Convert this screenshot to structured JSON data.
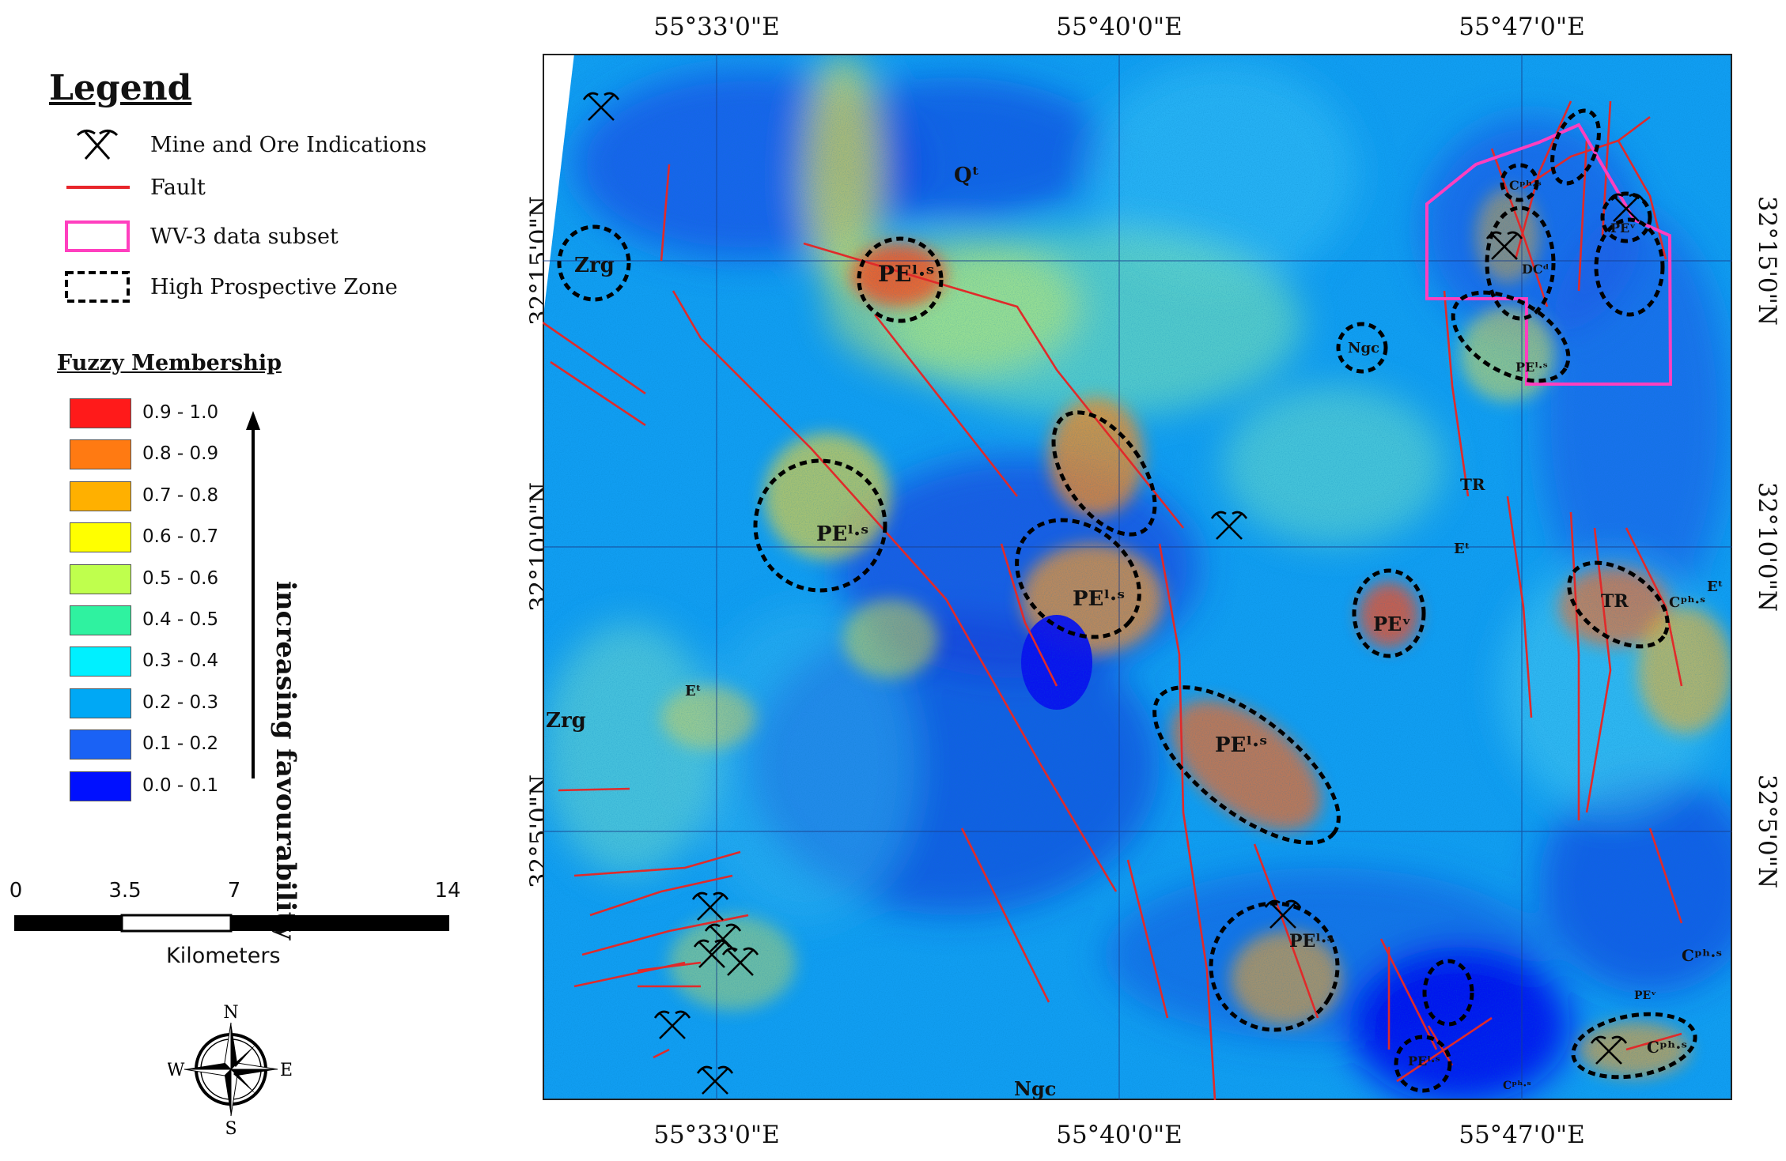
{
  "legend": {
    "title": "Legend",
    "items": [
      {
        "label": "Mine and Ore Indications",
        "icon": "mine-pickaxe-icon"
      },
      {
        "label": "Fault",
        "color": "#e8252b"
      },
      {
        "label": "WV-3 data subset",
        "color": "#ff3fbf"
      },
      {
        "label": "High Prospective Zone",
        "color": "#000000"
      }
    ]
  },
  "fuzzy": {
    "title": "Fuzzy Membership",
    "classes": [
      {
        "label": "0.9 - 1.0",
        "color": "#ff1a1a"
      },
      {
        "label": "0.8 - 0.9",
        "color": "#ff7a12"
      },
      {
        "label": "0.7 - 0.8",
        "color": "#ffb000"
      },
      {
        "label": "0.6 - 0.7",
        "color": "#ffff00"
      },
      {
        "label": "0.5 - 0.6",
        "color": "#bfff4d"
      },
      {
        "label": "0.4 - 0.5",
        "color": "#2ff2a0"
      },
      {
        "label": "0.3 - 0.4",
        "color": "#00f0ff"
      },
      {
        "label": "0.2 - 0.3",
        "color": "#00a8f5"
      },
      {
        "label": "0.1 - 0.2",
        "color": "#1a62f5"
      },
      {
        "label": "0.0 - 0.1",
        "color": "#0010ff"
      }
    ],
    "arrow_label": "increasing favourability"
  },
  "scale": {
    "ticks": [
      "0",
      "3.5",
      "7",
      "14"
    ],
    "unit": "Kilometers"
  },
  "north_arrow": {
    "n": "N",
    "s": "S",
    "e": "E",
    "w": "W"
  },
  "map": {
    "lon_labels": [
      "55°33'0\"E",
      "55°40'0\"E",
      "55°47'0\"E"
    ],
    "lat_labels": [
      "32°15'0\"N",
      "32°10'0\"N",
      "32°5'0\"N"
    ],
    "units": [
      "Qᵗ",
      "Zrg",
      "PEˡ·ˢ",
      "Ngc",
      "Cᵖʰ·ˢ",
      "DCᵈ",
      "PEᵛ",
      "PEˡ·ˢ",
      "TR",
      "Eᵗ",
      "PEˡ·ˢ",
      "PEˡ·ˢ",
      "PEᵛ",
      "TR",
      "Cᵖʰ·ˢ",
      "Eᵗ",
      "Eᵗ",
      "Zrg",
      "PEˡ·ˢ",
      "PEˡ·ˢ",
      "Cᵖʰ·ˢ",
      "PEˡ·ˢ",
      "Cᵖʰ·ˢ",
      "Ngc",
      "Cᵖʰ·ˢ",
      "PEᵛ"
    ]
  }
}
